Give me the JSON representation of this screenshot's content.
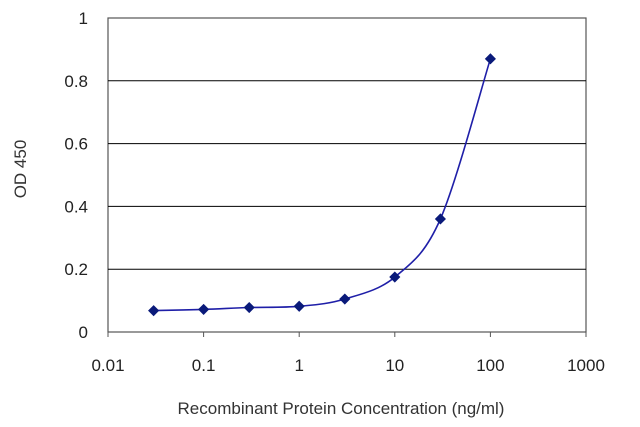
{
  "chart_data": {
    "type": "line",
    "title": "",
    "xlabel": "Recombinant Protein Concentration (ng/ml)",
    "ylabel": "OD 450",
    "x_scale": "log",
    "xlim": [
      0.01,
      1000
    ],
    "ylim": [
      0,
      1
    ],
    "x_ticks": [
      "0.01",
      "0.1",
      "1",
      "10",
      "100",
      "1000"
    ],
    "y_ticks": [
      "0",
      "0.2",
      "0.4",
      "0.6",
      "0.8",
      "1"
    ],
    "grid": "horizontal",
    "legend": "none",
    "series": [
      {
        "x": [
          0.03,
          0.1,
          0.3,
          1,
          3,
          10,
          30,
          100
        ],
        "y": [
          0.068,
          0.072,
          0.078,
          0.082,
          0.105,
          0.175,
          0.36,
          0.87
        ]
      }
    ],
    "colors": {
      "line": "#1f1fa8",
      "marker": "#0a1a7a",
      "grid": "#000000",
      "frame": "#555555"
    }
  }
}
